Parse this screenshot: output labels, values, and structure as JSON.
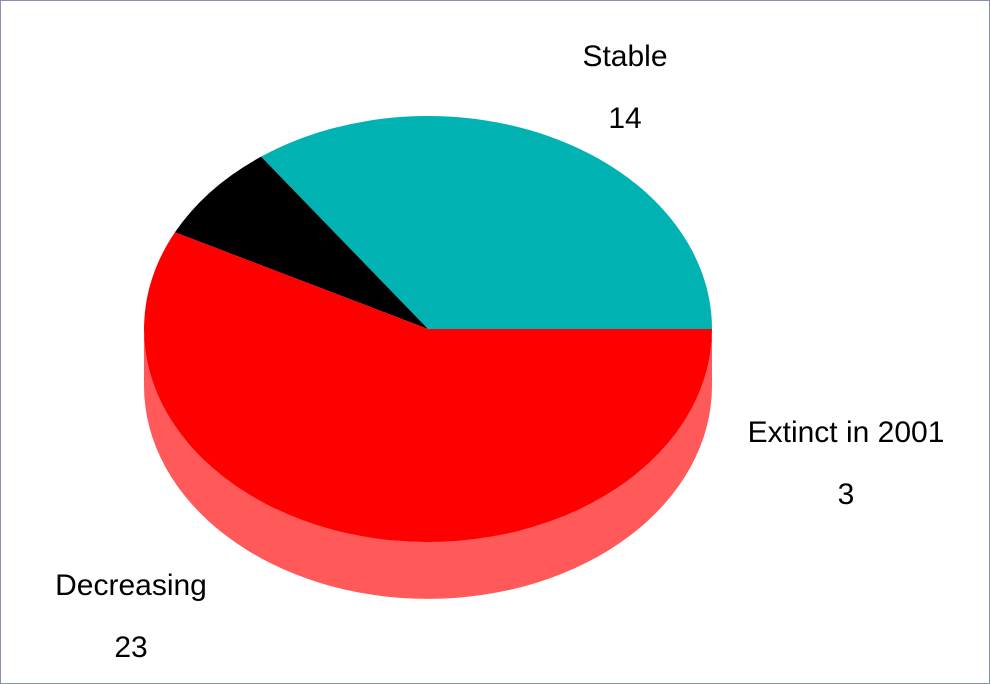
{
  "chart_data": {
    "type": "pie",
    "title": "",
    "style": "3d",
    "slices": [
      {
        "label": "Stable",
        "value": 14,
        "color": "#00b2b2",
        "side_color": "#00b2b2"
      },
      {
        "label": "Extinct in 2001",
        "value": 3,
        "color": "#000000",
        "side_color": "#595959"
      },
      {
        "label": "Decreasing",
        "value": 23,
        "color": "#ff0000",
        "side_color": "#ff5959"
      }
    ]
  }
}
